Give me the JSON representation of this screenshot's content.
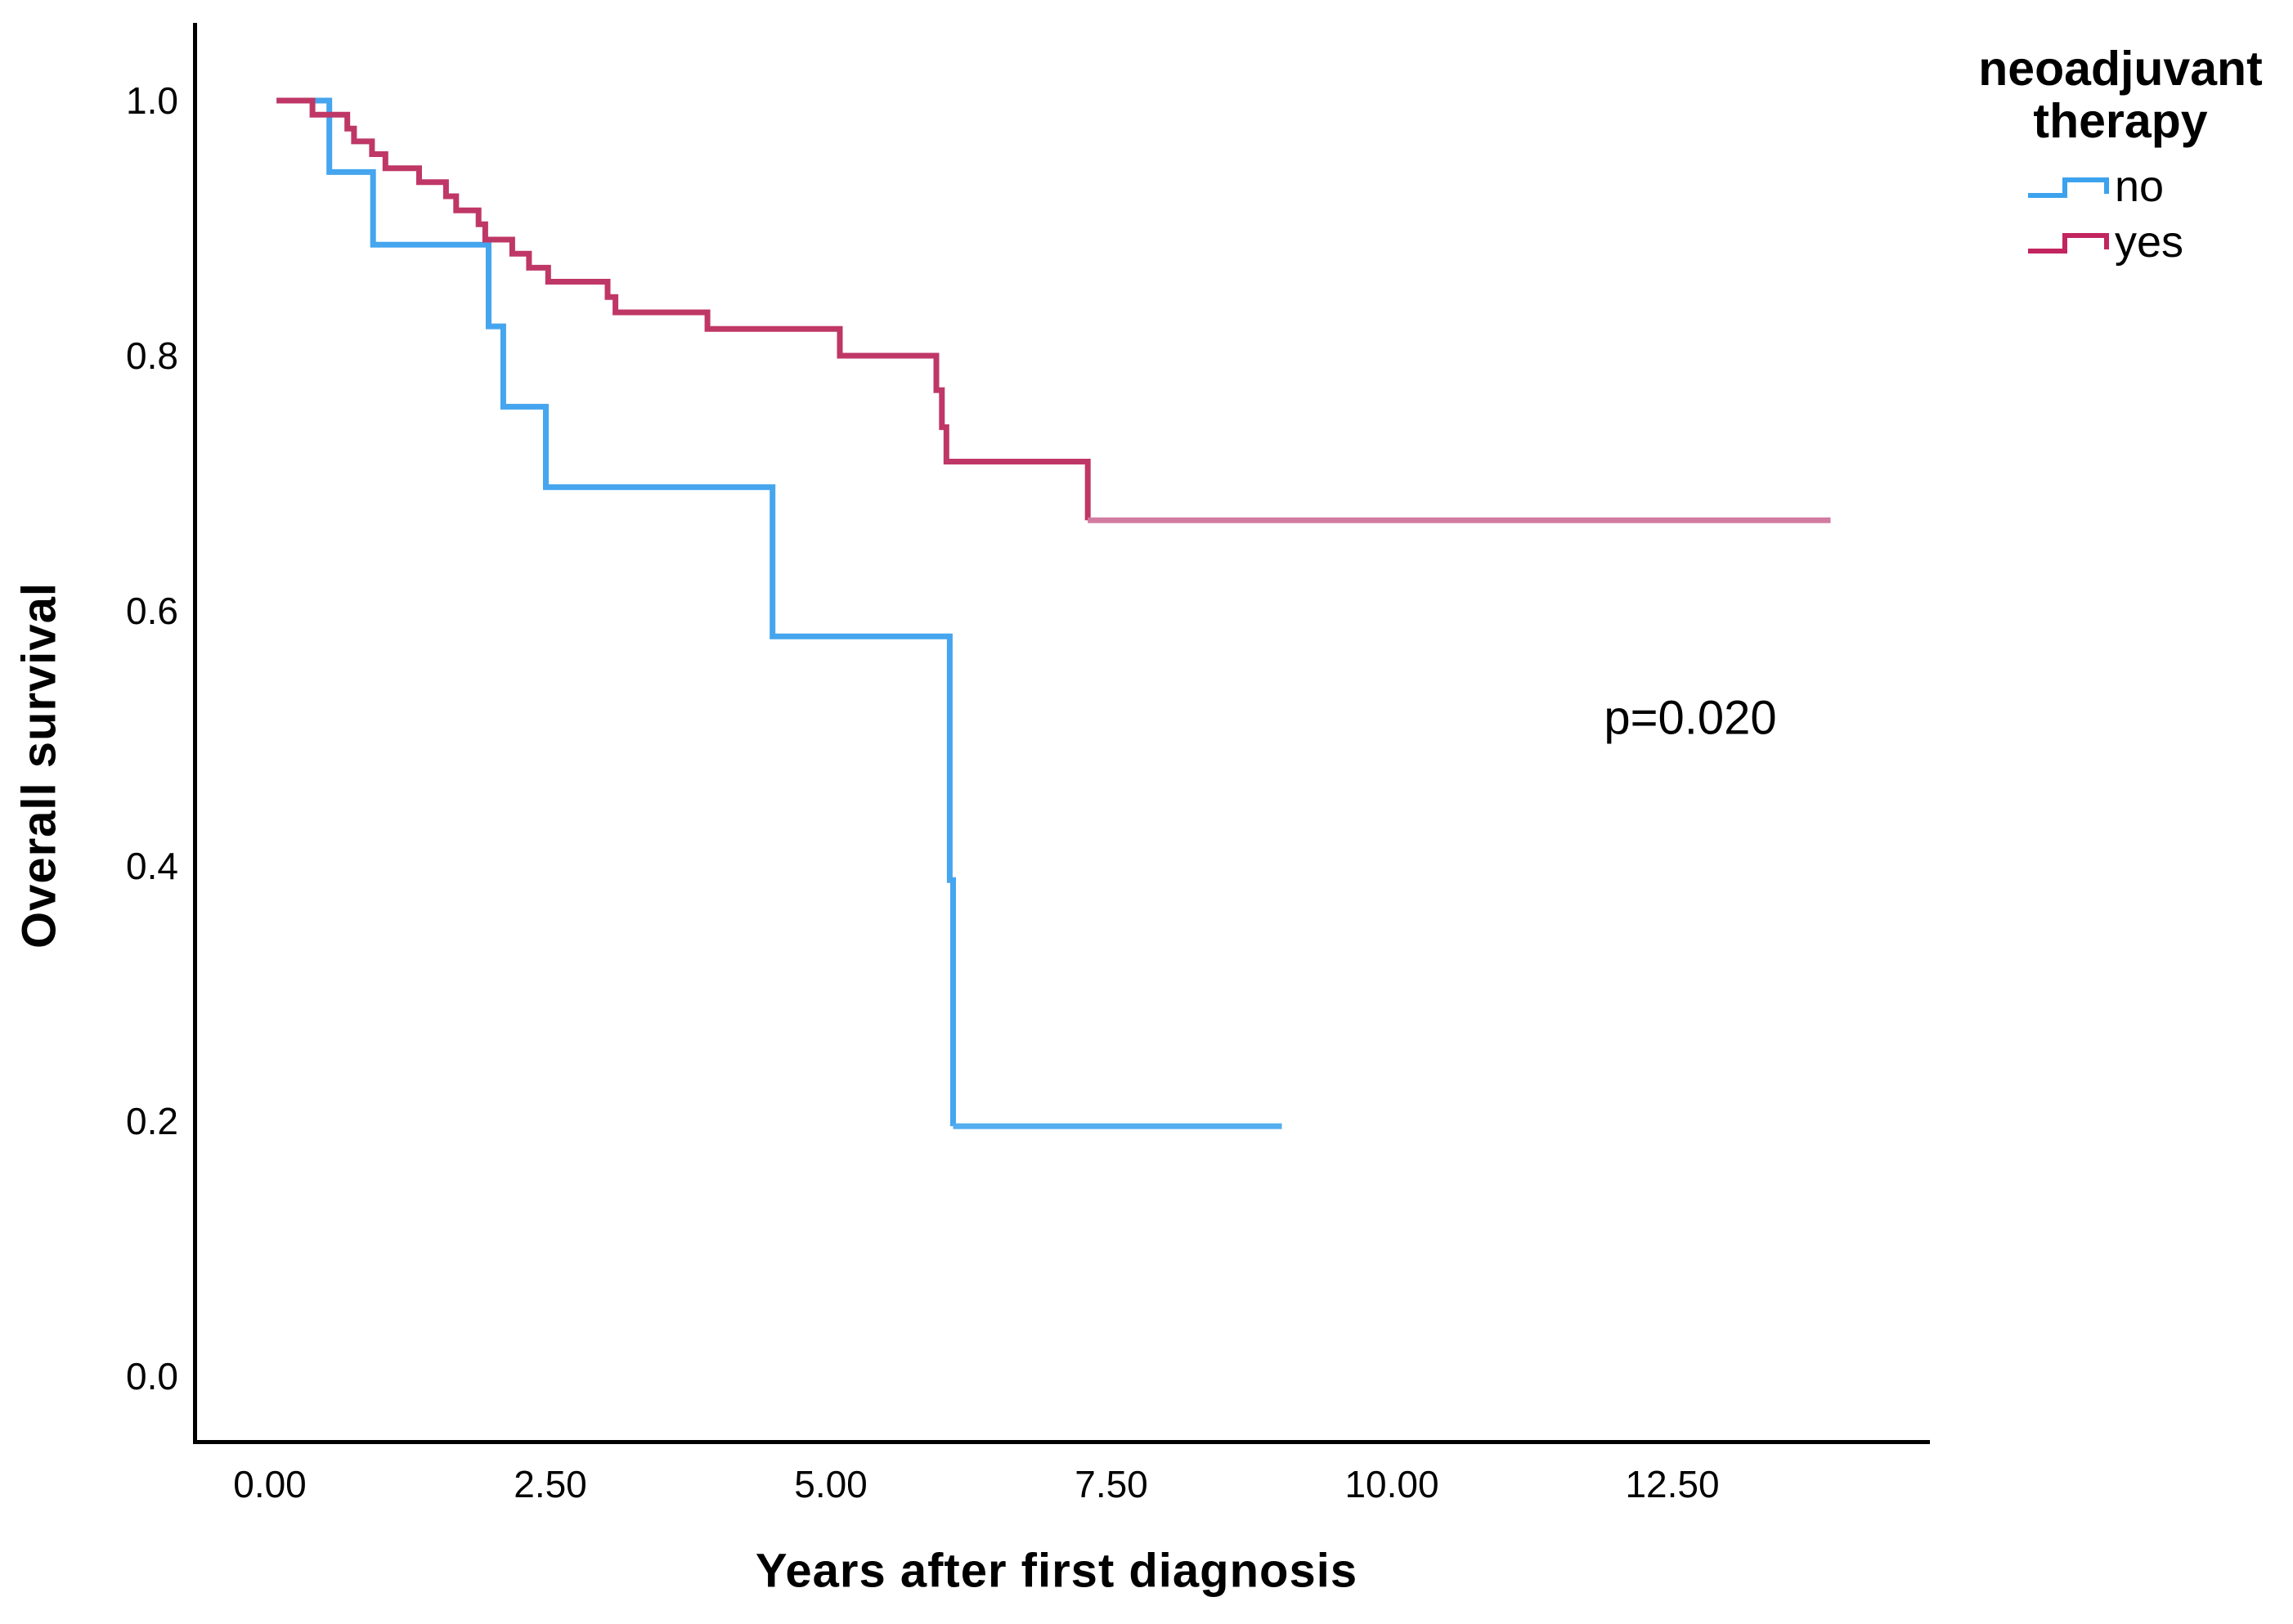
{
  "labels": {
    "y_axis": "Overall survival",
    "x_axis": "Years after first diagnosis",
    "p_value": "p=0.020",
    "legend_title_line1": "neoadjuvant",
    "legend_title_line2": "therapy"
  },
  "chart_data": {
    "type": "line",
    "subtype": "kaplan-meier-step",
    "title": "",
    "xlabel": "Years after first diagnosis",
    "ylabel": "Overall survival",
    "annotation": "p=0.020",
    "grid": false,
    "xlim": [
      -0.7,
      14.8
    ],
    "ylim": [
      -0.05,
      1.05
    ],
    "x_ticks": {
      "values": [
        0,
        2.5,
        5,
        7.5,
        10,
        12.5
      ],
      "labels": [
        "0.00",
        "2.50",
        "5.00",
        "7.50",
        "10.00",
        "12.50"
      ]
    },
    "y_ticks": {
      "values": [
        0.0,
        0.2,
        0.4,
        0.6,
        0.8,
        1.0
      ],
      "labels": [
        "0.0",
        "0.2",
        "0.4",
        "0.6",
        "0.8",
        "1.0"
      ]
    },
    "legend": {
      "title": "neoadjuvant therapy",
      "position": "top-right-outside",
      "entries": [
        {
          "label": "no",
          "color": "#3da2ee"
        },
        {
          "label": "yes",
          "color": "#c2255f"
        }
      ]
    },
    "series": [
      {
        "name": "no",
        "color": "#45a5ee",
        "tail_color": "#55aeef",
        "start_x": 0.06,
        "start_y": 1.0,
        "end_x": 9.02,
        "drops": [
          [
            0.53,
            0.944
          ],
          [
            0.92,
            0.887
          ],
          [
            1.95,
            0.823
          ],
          [
            2.08,
            0.76
          ],
          [
            2.46,
            0.697
          ],
          [
            4.48,
            0.58
          ],
          [
            6.06,
            0.389
          ],
          [
            6.09,
            0.196
          ]
        ]
      },
      {
        "name": "yes",
        "color": "#bf3766",
        "tail_color": "#d27ba0",
        "start_x": 0.06,
        "start_y": 1.0,
        "end_x": 13.91,
        "drops": [
          [
            0.38,
            0.989
          ],
          [
            0.69,
            0.978
          ],
          [
            0.75,
            0.968
          ],
          [
            0.91,
            0.958
          ],
          [
            1.03,
            0.947
          ],
          [
            1.33,
            0.936
          ],
          [
            1.57,
            0.925
          ],
          [
            1.66,
            0.914
          ],
          [
            1.86,
            0.903
          ],
          [
            1.92,
            0.891
          ],
          [
            2.16,
            0.88
          ],
          [
            2.31,
            0.869
          ],
          [
            2.48,
            0.858
          ],
          [
            3.01,
            0.846
          ],
          [
            3.08,
            0.834
          ],
          [
            3.9,
            0.821
          ],
          [
            5.08,
            0.8
          ],
          [
            5.94,
            0.773
          ],
          [
            5.99,
            0.744
          ],
          [
            6.03,
            0.717
          ],
          [
            7.29,
            0.671
          ]
        ]
      }
    ]
  }
}
